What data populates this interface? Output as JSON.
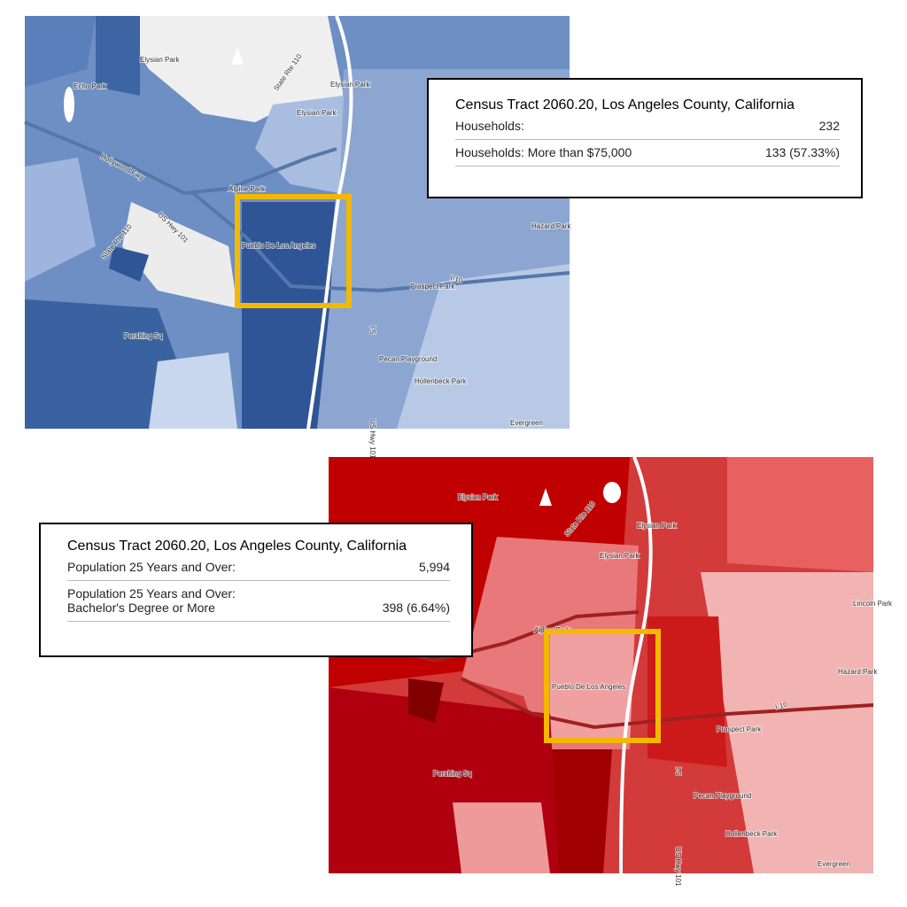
{
  "maps": [
    {
      "labels": [
        "Elysian Park",
        "Echo Park",
        "Elysian Park",
        "Elysian Park",
        "State Rte 110",
        "Hollywood Fwy",
        "US Hwy 101",
        "State Rte 110",
        "Alpine Park",
        "Pueblo De Los Angeles",
        "Hazard Park",
        "Prospect Park",
        "I-10",
        "I-5",
        "Pershing Sq",
        "Pecan Playground",
        "Hollenbeck Park",
        "US Hwy 101",
        "Evergreen"
      ],
      "popup": {
        "title": "Census Tract 2060.20, Los Angeles County, California",
        "rows": [
          {
            "label": [
              "Households:"
            ],
            "value": "232"
          },
          {
            "label": [
              "Households: More than $75,000"
            ],
            "value": "133 (57.33%)"
          }
        ]
      }
    },
    {
      "labels": [
        "Elysian Park",
        "Elysian Park",
        "Elysian Park",
        "State Rte 110",
        "Alpine Park",
        "Pueblo De Los Angeles",
        "Hazard Park",
        "Prospect Park",
        "Lincoln Park",
        "I-10",
        "I-5",
        "Pershing Sq",
        "Pecan Playground",
        "Hollenbeck Park",
        "US Hwy 101",
        "Evergreen"
      ],
      "popup": {
        "title": "Census Tract 2060.20, Los Angeles County, California",
        "rows": [
          {
            "label": [
              "Population 25 Years and Over:"
            ],
            "value": "5,994"
          },
          {
            "label": [
              "Population 25 Years and Over:",
              "Bachelor's Degree or More"
            ],
            "value": "398 (6.64%)"
          }
        ]
      }
    }
  ]
}
